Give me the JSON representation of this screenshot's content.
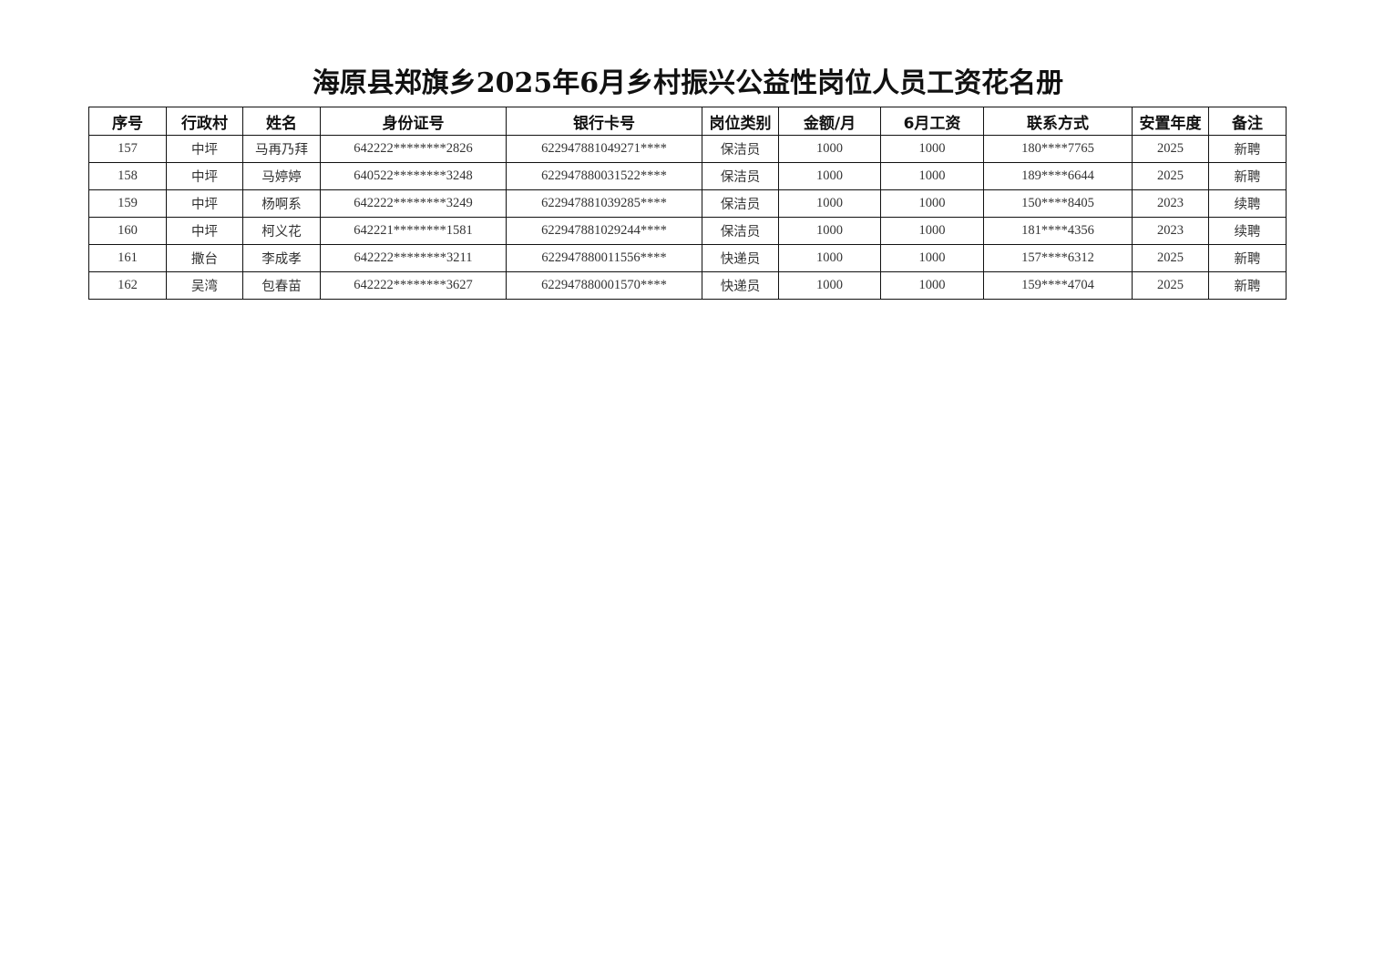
{
  "title": "海原县郑旗乡2025年6月乡村振兴公益性岗位人员工资花名册",
  "table": {
    "headers": [
      "序号",
      "行政村",
      "姓名",
      "身份证号",
      "银行卡号",
      "岗位类别",
      "金额/月",
      "6月工资",
      "联系方式",
      "安置年度",
      "备注"
    ],
    "rows": [
      [
        "157",
        "中坪",
        "马再乃拜",
        "642222********2826",
        "622947881049271****",
        "保洁员",
        "1000",
        "1000",
        "180****7765",
        "2025",
        "新聘"
      ],
      [
        "158",
        "中坪",
        "马婷婷",
        "640522********3248",
        "622947880031522****",
        "保洁员",
        "1000",
        "1000",
        "189****6644",
        "2025",
        "新聘"
      ],
      [
        "159",
        "中坪",
        "杨啊系",
        "642222********3249",
        "622947881039285****",
        "保洁员",
        "1000",
        "1000",
        "150****8405",
        "2023",
        "续聘"
      ],
      [
        "160",
        "中坪",
        "柯义花",
        "642221********1581",
        "622947881029244****",
        "保洁员",
        "1000",
        "1000",
        "181****4356",
        "2023",
        "续聘"
      ],
      [
        "161",
        "撒台",
        "李成孝",
        "642222********3211",
        "622947880011556****",
        "快递员",
        "1000",
        "1000",
        "157****6312",
        "2025",
        "新聘"
      ],
      [
        "162",
        "吴湾",
        "包春苗",
        "642222********3627",
        "622947880001570****",
        "快递员",
        "1000",
        "1000",
        "159****4704",
        "2025",
        "新聘"
      ]
    ]
  }
}
